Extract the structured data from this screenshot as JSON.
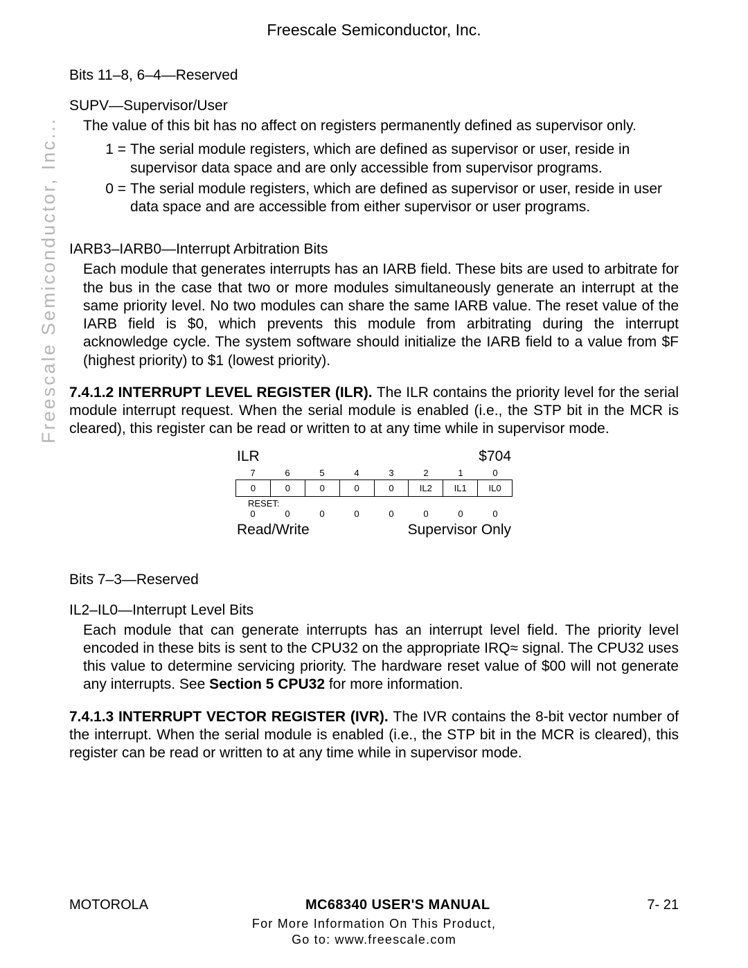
{
  "header": {
    "title": "Freescale Semiconductor, Inc."
  },
  "watermark": "Freescale Semiconductor, Inc...",
  "sections": {
    "bits_reserved_1": "Bits 11–8, 6–4—Reserved",
    "supv_heading": "SUPV—Supervisor/User",
    "supv_body": "The value of this bit has no affect on registers permanently defined as supervisor only.",
    "supv_def1_key": "1 =",
    "supv_def1_text": "The serial module registers, which are defined as supervisor or user, reside in supervisor data space and are only accessible from supervisor programs.",
    "supv_def0_key": "0 =",
    "supv_def0_text": "The serial module registers, which are defined as supervisor or user, reside in user data space and are accessible from either supervisor or user programs.",
    "iarb_heading": "IARB3–IARB0—Interrupt Arbitration Bits",
    "iarb_body": "Each module that generates interrupts has an IARB field. These bits are used to arbitrate for the bus in the case that two or more modules simultaneously generate an interrupt at the same priority level. No two modules can share the same IARB value. The reset value of the IARB field is $0, which prevents this module from arbitrating during the interrupt acknowledge cycle. The system software should initialize the IARB field to a value from $F (highest priority) to $1 (lowest priority).",
    "ilr_title_bold": "7.4.1.2 INTERRUPT LEVEL REGISTER (ILR). ",
    "ilr_body": "The ILR contains the priority level for the serial module interrupt request. When the serial module is enabled (i.e., the STP bit in the MCR is cleared), this register can be read or written to at any time while in supervisor mode.",
    "bits_reserved_2": "Bits 7–3—Reserved",
    "il_heading": "IL2–IL0—Interrupt Level Bits",
    "il_body_pre": "Each module that can generate interrupts has an interrupt level field. The priority level encoded in these bits is sent to the CPU32 on the appropriate IRQ≈ signal. The CPU32 uses this value to determine servicing priority. The hardware reset value of $00 will not generate any interrupts. See ",
    "il_body_bold": "Section 5 CPU32",
    "il_body_post": " for more information.",
    "ivr_title_bold": "7.4.1.3 INTERRUPT VECTOR REGISTER (IVR). ",
    "ivr_body": "The IVR contains the 8-bit vector number of the interrupt. When the serial module is enabled (i.e., the STP bit in the MCR is cleared), this register can be read or written to at any time while in supervisor mode."
  },
  "register": {
    "name": "ILR",
    "address": "$704",
    "bit_numbers": [
      "7",
      "6",
      "5",
      "4",
      "3",
      "2",
      "1",
      "0"
    ],
    "values": [
      "0",
      "0",
      "0",
      "0",
      "0",
      "IL2",
      "IL1",
      "IL0"
    ],
    "reset_label": "RESET:",
    "reset_values": [
      "0",
      "0",
      "0",
      "0",
      "0",
      "0",
      "0",
      "0"
    ],
    "access": "Read/Write",
    "privilege": "Supervisor Only"
  },
  "footer": {
    "left": "MOTOROLA",
    "center": "MC68340 USER'S MANUAL",
    "right": "7- 21",
    "line1": "For More Information On This Product,",
    "line2": "Go to: www.freescale.com"
  }
}
